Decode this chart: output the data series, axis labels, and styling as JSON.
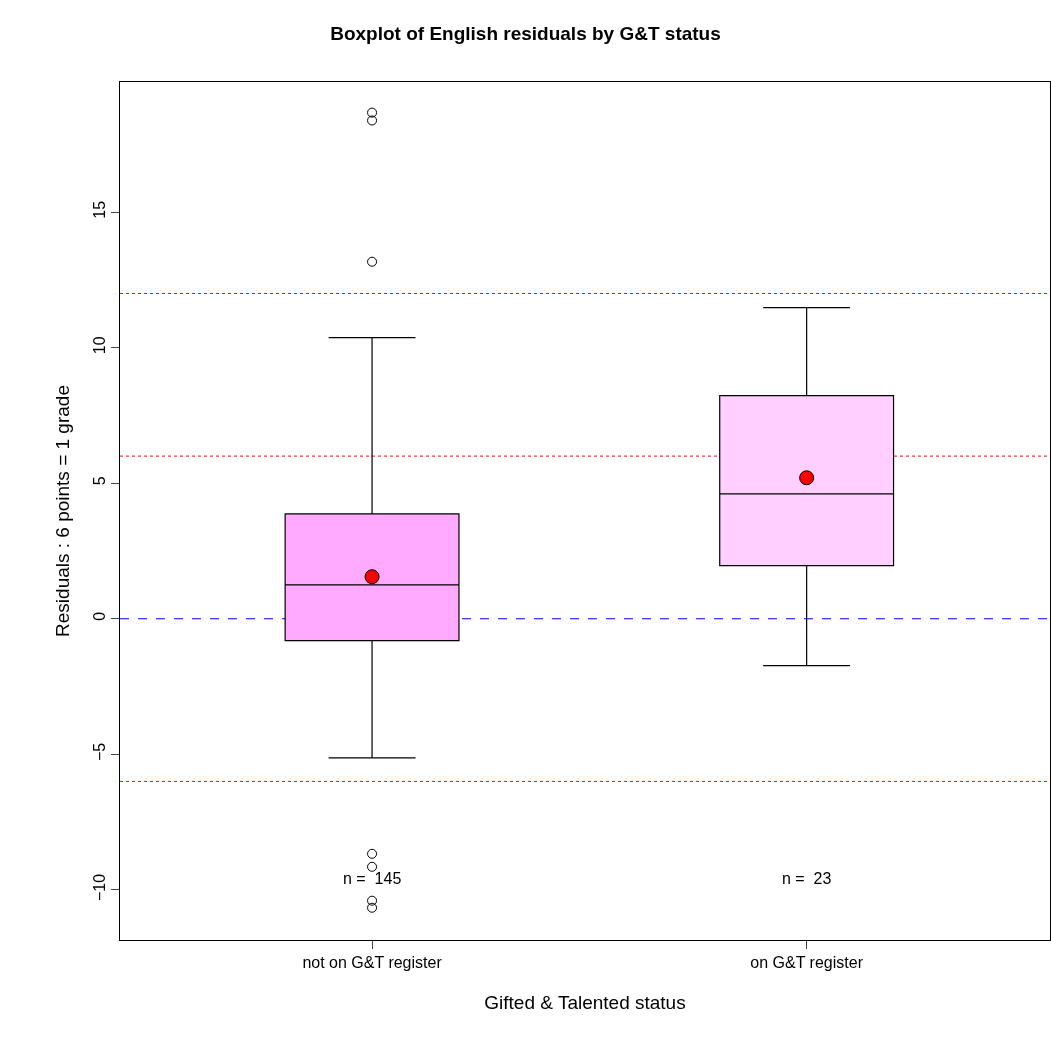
{
  "chart_data": {
    "type": "box",
    "title": "Boxplot of English residuals by G&T status",
    "xlabel": "Gifted & Talented status",
    "ylabel": "Residuals : 6 points = 1 grade",
    "categories": [
      "not on G&T register",
      "on G&T register"
    ],
    "boxes": [
      {
        "low": -5.13,
        "q1": -0.81,
        "median": 1.25,
        "q3": 3.87,
        "high": 10.37,
        "mean": 1.55,
        "outliers": [
          18.67,
          18.38,
          13.17,
          -8.67,
          -9.15,
          -10.4,
          -10.66
        ]
      },
      {
        "low": -1.73,
        "q1": 1.96,
        "median": 4.61,
        "q3": 8.23,
        "high": 11.48,
        "mean": 5.2
      }
    ],
    "colors": [
      "#ffaaff",
      "#ffd0ff"
    ],
    "ylim": [
      -11.85,
      19.8
    ],
    "yticks": [
      -10,
      -5,
      0,
      5,
      10,
      15
    ],
    "ref_lines": [
      {
        "axis": "y",
        "value": 12,
        "color": "#ff0000",
        "line_style": "dotted"
      },
      {
        "axis": "y",
        "value": 6,
        "color": "#ff0000",
        "line_style": "dotted"
      },
      {
        "axis": "y",
        "value": -6,
        "color": "#ff0000",
        "line_style": "dotted"
      },
      {
        "axis": "y",
        "value": 0,
        "color": "#0000ff",
        "line_style": "dashed"
      }
    ],
    "annotations": [
      "n =  145",
      "n =  23"
    ],
    "grid": false
  }
}
